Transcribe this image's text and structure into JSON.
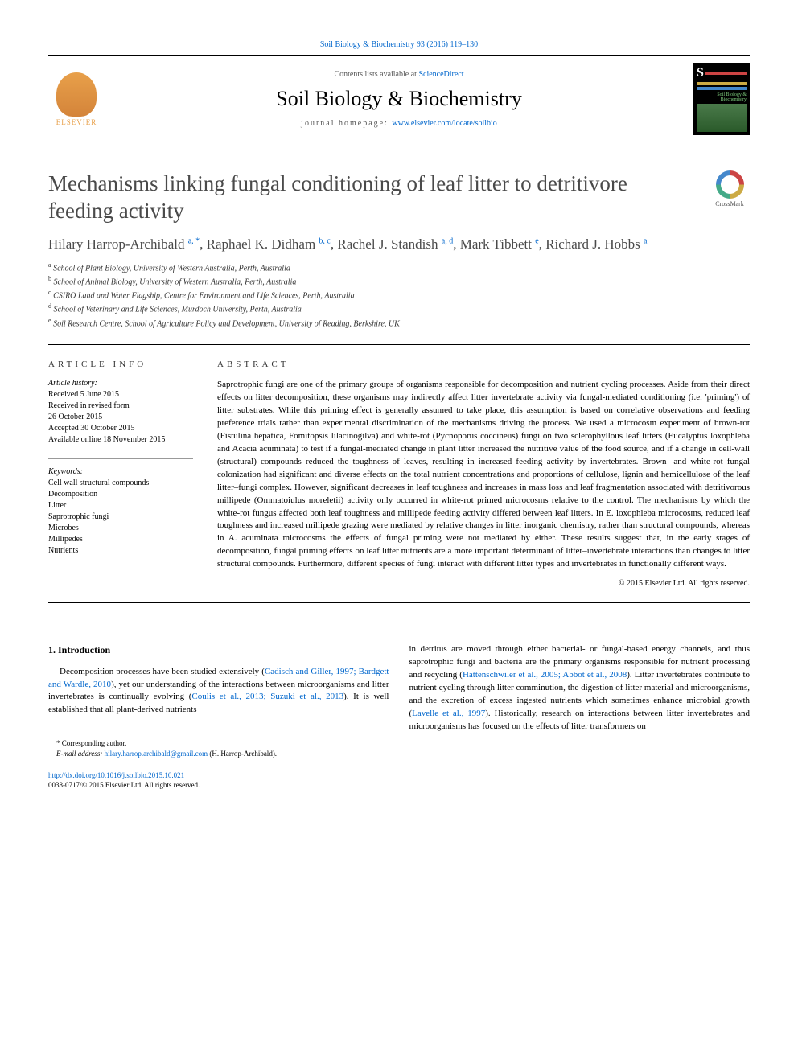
{
  "top_link": "Soil Biology & Biochemistry 93 (2016) 119–130",
  "header": {
    "contents_prefix": "Contents lists available at ",
    "contents_link": "ScienceDirect",
    "journal_name": "Soil Biology & Biochemistry",
    "homepage_prefix": "journal homepage: ",
    "homepage_link": "www.elsevier.com/locate/soilbio",
    "publisher": "ELSEVIER",
    "cover_label": "Soil Biology & Biochemistry"
  },
  "crossmark": "CrossMark",
  "title": "Mechanisms linking fungal conditioning of leaf litter to detritivore feeding activity",
  "authors_html": "Hilary Harrop-Archibald <sup>a, *</sup>, Raphael K. Didham <sup>b, c</sup>, Rachel J. Standish <sup>a, d</sup>, Mark Tibbett <sup>e</sup>, Richard J. Hobbs <sup>a</sup>",
  "affiliations": [
    {
      "sup": "a",
      "text": " School of Plant Biology, University of Western Australia, Perth, Australia"
    },
    {
      "sup": "b",
      "text": " School of Animal Biology, University of Western Australia, Perth, Australia"
    },
    {
      "sup": "c",
      "text": " CSIRO Land and Water Flagship, Centre for Environment and Life Sciences, Perth, Australia"
    },
    {
      "sup": "d",
      "text": " School of Veterinary and Life Sciences, Murdoch University, Perth, Australia"
    },
    {
      "sup": "e",
      "text": " Soil Research Centre, School of Agriculture Policy and Development, University of Reading, Berkshire, UK"
    }
  ],
  "article_info": {
    "heading": "ARTICLE INFO",
    "history_label": "Article history:",
    "history": "Received 5 June 2015\nReceived in revised form\n26 October 2015\nAccepted 30 October 2015\nAvailable online 18 November 2015",
    "keywords_label": "Keywords:",
    "keywords": "Cell wall structural compounds\nDecomposition\nLitter\nSaprotrophic fungi\nMicrobes\nMillipedes\nNutrients"
  },
  "abstract": {
    "heading": "ABSTRACT",
    "text": "Saprotrophic fungi are one of the primary groups of organisms responsible for decomposition and nutrient cycling processes. Aside from their direct effects on litter decomposition, these organisms may indirectly affect litter invertebrate activity via fungal-mediated conditioning (i.e. 'priming') of litter substrates. While this priming effect is generally assumed to take place, this assumption is based on correlative observations and feeding preference trials rather than experimental discrimination of the mechanisms driving the process. We used a microcosm experiment of brown-rot (Fistulina hepatica, Fomitopsis lilacinogilva) and white-rot (Pycnoporus coccineus) fungi on two sclerophyllous leaf litters (Eucalyptus loxophleba and Acacia acuminata) to test if a fungal-mediated change in plant litter increased the nutritive value of the food source, and if a change in cell-wall (structural) compounds reduced the toughness of leaves, resulting in increased feeding activity by invertebrates. Brown- and white-rot fungal colonization had significant and diverse effects on the total nutrient concentrations and proportions of cellulose, lignin and hemicellulose of the leaf litter–fungi complex. However, significant decreases in leaf toughness and increases in mass loss and leaf fragmentation associated with detritivorous millipede (Ommatoiulus moreletii) activity only occurred in white-rot primed microcosms relative to the control. The mechanisms by which the white-rot fungus affected both leaf toughness and millipede feeding activity differed between leaf litters. In E. loxophleba microcosms, reduced leaf toughness and increased millipede grazing were mediated by relative changes in litter inorganic chemistry, rather than structural compounds, whereas in A. acuminata microcosms the effects of fungal priming were not mediated by either. These results suggest that, in the early stages of decomposition, fungal priming effects on leaf litter nutrients are a more important determinant of litter–invertebrate interactions than changes to litter structural compounds. Furthermore, different species of fungi interact with different litter types and invertebrates in functionally different ways.",
    "copyright": "© 2015 Elsevier Ltd. All rights reserved."
  },
  "body": {
    "section_heading": "1. Introduction",
    "col1_p1_a": "Decomposition processes have been studied extensively (",
    "col1_link1": "Cadisch and Giller, 1997; Bardgett and Wardle, 2010",
    "col1_p1_b": "), yet our understanding of the interactions between microorganisms and litter invertebrates is continually evolving (",
    "col1_link2": "Coulis et al., 2013; Suzuki et al., 2013",
    "col1_p1_c": "). It is well established that all plant-derived nutrients",
    "col2_p1_a": "in detritus are moved through either bacterial- or fungal-based energy channels, and thus saprotrophic fungi and bacteria are the primary organisms responsible for nutrient processing and recycling (",
    "col2_link1": "Hattenschwiler et al., 2005; Abbot et al., 2008",
    "col2_p1_b": "). Litter invertebrates contribute to nutrient cycling through litter comminution, the digestion of litter material and microorganisms, and the excretion of excess ingested nutrients which sometimes enhance microbial growth (",
    "col2_link2": "Lavelle et al., 1997",
    "col2_p1_c": "). Historically, research on interactions between litter invertebrates and microorganisms has focused on the effects of litter transformers on"
  },
  "footnote": {
    "corresponding": "* Corresponding author.",
    "email_label": "E-mail address: ",
    "email": "hilary.harrop.archibald@gmail.com",
    "email_suffix": " (H. Harrop-Archibald)."
  },
  "doi": {
    "link": "http://dx.doi.org/10.1016/j.soilbio.2015.10.021",
    "issn": "0038-0717/© 2015 Elsevier Ltd. All rights reserved."
  },
  "colors": {
    "link": "#0066cc",
    "elsevier": "#e8a04a",
    "title_gray": "#4a4a4a"
  }
}
